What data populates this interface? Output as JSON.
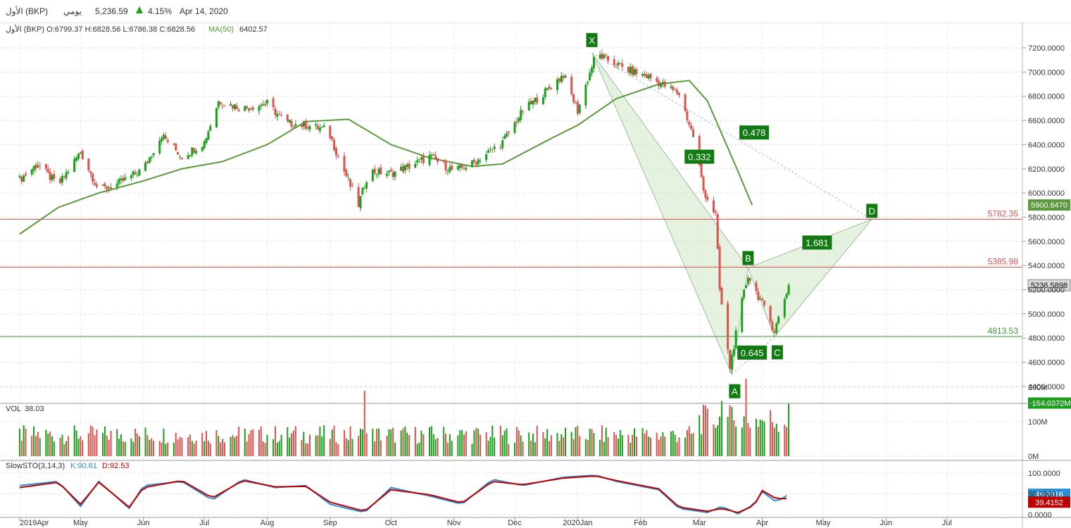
{
  "header": {
    "symbol": "الأول (BKP)",
    "period": "يومي",
    "price": "5,236.59",
    "change_icon": "triangle-up-icon",
    "change": "4.15%",
    "date": "Apr 14, 2020"
  },
  "legend": {
    "ohlc": "الأول (BKP)  O:6799.37  H:6828.56  L:6786.38  C:6828.56",
    "ma_label": "MA(50)",
    "ma_value": "6402.57",
    "vol_label": "VOL",
    "vol_value": "38.03",
    "stoch_label": "SlowSTO(3,14,3)",
    "k_label": "K:90.61",
    "d_label": "D:92.53"
  },
  "colors": {
    "up": "#1b9e1b",
    "down": "#d9534f",
    "ma": "#5a9a3c",
    "stoch_k": "#2a8fd6",
    "stoch_d": "#c00000",
    "level_red": "#e05050",
    "level_green": "#3a9a3a",
    "pattern_fill": "#cfe8c6",
    "label_bg": "#127a12"
  },
  "chart_data": [
    {
      "type": "candlestick",
      "name": "BKP daily",
      "x_labels": [
        "2019Apr",
        "May",
        "Jun",
        "Jul",
        "Aug",
        "Sep",
        "Oct",
        "Nov",
        "Dec",
        "2020Jan",
        "Feb",
        "Mar",
        "Apr",
        "May",
        "Jun",
        "Jul"
      ],
      "y_ticks": [
        "7200.0000",
        "7000.0000",
        "6800.0000",
        "6600.0000",
        "6400.0000",
        "6200.0000",
        "6000.0000",
        "5800.0000",
        "5600.0000",
        "5400.0000",
        "5200.0000",
        "5000.0000",
        "4800.0000",
        "4600.0000",
        "4400.0000"
      ],
      "ylim": [
        4300,
        7400
      ],
      "close_path": [
        [
          "2019-04-01",
          6110
        ],
        [
          "2019-04-10",
          6240
        ],
        [
          "2019-04-20",
          6060
        ],
        [
          "2019-05-01",
          6340
        ],
        [
          "2019-05-10",
          6020
        ],
        [
          "2019-05-20",
          6080
        ],
        [
          "2019-06-01",
          6200
        ],
        [
          "2019-06-10",
          6480
        ],
        [
          "2019-06-20",
          6300
        ],
        [
          "2019-07-01",
          6420
        ],
        [
          "2019-07-08",
          6760
        ],
        [
          "2019-07-20",
          6700
        ],
        [
          "2019-08-01",
          6740
        ],
        [
          "2019-08-10",
          6580
        ],
        [
          "2019-08-20",
          6560
        ],
        [
          "2019-08-31",
          6520
        ],
        [
          "2019-09-05",
          6300
        ],
        [
          "2019-09-15",
          5900
        ],
        [
          "2019-09-20",
          6180
        ],
        [
          "2019-10-01",
          6160
        ],
        [
          "2019-10-10",
          6220
        ],
        [
          "2019-10-20",
          6300
        ],
        [
          "2019-11-01",
          6180
        ],
        [
          "2019-11-10",
          6240
        ],
        [
          "2019-11-25",
          6420
        ],
        [
          "2019-12-05",
          6680
        ],
        [
          "2019-12-15",
          6820
        ],
        [
          "2019-12-25",
          6980
        ],
        [
          "2020-01-01",
          6680
        ],
        [
          "2020-01-10",
          7150
        ],
        [
          "2020-01-25",
          7020
        ],
        [
          "2020-02-05",
          6960
        ],
        [
          "2020-02-20",
          6820
        ],
        [
          "2020-02-28",
          6420
        ],
        [
          "2020-03-03",
          6020
        ],
        [
          "2020-03-09",
          5820
        ],
        [
          "2020-03-11",
          5200
        ],
        [
          "2020-03-16",
          4560
        ],
        [
          "2020-03-22",
          5100
        ],
        [
          "2020-03-25",
          5320
        ],
        [
          "2020-04-01",
          5080
        ],
        [
          "2020-04-07",
          4860
        ],
        [
          "2020-04-14",
          5236.59
        ]
      ],
      "ma50_path": [
        [
          "2019-04-01",
          5660
        ],
        [
          "2019-04-20",
          5880
        ],
        [
          "2019-05-10",
          6000
        ],
        [
          "2019-06-01",
          6100
        ],
        [
          "2019-06-20",
          6200
        ],
        [
          "2019-07-10",
          6260
        ],
        [
          "2019-08-01",
          6400
        ],
        [
          "2019-08-20",
          6590
        ],
        [
          "2019-09-10",
          6610
        ],
        [
          "2019-10-01",
          6400
        ],
        [
          "2019-10-20",
          6290
        ],
        [
          "2019-11-10",
          6220
        ],
        [
          "2019-11-25",
          6240
        ],
        [
          "2019-12-20",
          6460
        ],
        [
          "2020-01-01",
          6560
        ],
        [
          "2020-01-20",
          6780
        ],
        [
          "2020-02-10",
          6900
        ],
        [
          "2020-02-25",
          6930
        ],
        [
          "2020-03-05",
          6760
        ],
        [
          "2020-03-20",
          6180
        ],
        [
          "2020-03-27",
          5900
        ]
      ],
      "horizontal_levels": [
        {
          "value": 5782.35,
          "label": "5782.35",
          "color": "#e05050"
        },
        {
          "value": 5385.98,
          "label": "5385.98",
          "color": "#e05050"
        },
        {
          "value": 4813.53,
          "label": "4813.53",
          "color": "#3a9a3a"
        }
      ],
      "pattern_points": [
        {
          "label": "X",
          "date": "2020-01-08",
          "value": 7160
        },
        {
          "label": "A",
          "date": "2020-03-17",
          "value": 4500
        },
        {
          "label": "B",
          "date": "2020-03-25",
          "value": 5380
        },
        {
          "label": "C",
          "date": "2020-04-07",
          "value": 4810
        },
        {
          "label": "D",
          "date": "2020-05-25",
          "value": 5782.35
        }
      ],
      "pattern_ratios": [
        {
          "label": "0.332",
          "date": "2020-03-01",
          "value": 6300
        },
        {
          "label": "0.478",
          "date": "2020-03-28",
          "value": 6500
        },
        {
          "label": "1.681",
          "date": "2020-04-28",
          "value": 5590
        },
        {
          "label": "0.645",
          "date": "2020-03-27",
          "value": 4680
        }
      ],
      "price_tags": [
        {
          "value": 5900.647,
          "label": "5900.6470",
          "color": "#5a9a3c"
        },
        {
          "value": 5236.5898,
          "label": "5236.5898",
          "color": "#d8d8d8"
        }
      ]
    },
    {
      "type": "bar",
      "name": "VOL",
      "y_ticks": [
        "200M",
        "100M",
        "0M"
      ],
      "ylim": [
        0,
        250
      ],
      "last_value": "154.0372M",
      "typical_range_M": [
        35,
        90
      ],
      "spikes": [
        {
          "date": "2019-09-18",
          "value": 190
        },
        {
          "date": "2020-03-12",
          "value": 160
        },
        {
          "date": "2020-03-24",
          "value": 225
        },
        {
          "date": "2020-04-14",
          "value": 154
        }
      ]
    },
    {
      "type": "line",
      "name": "SlowSTO(3,14,3)",
      "y_ticks": [
        "100.0000",
        "50.0000",
        "0.0000"
      ],
      "ylim": [
        0,
        100
      ],
      "k_last": "49.2316",
      "d_last": "39.4152",
      "k_path": [
        [
          "2019-04-01",
          70
        ],
        [
          "2019-04-20",
          80
        ],
        [
          "2019-05-01",
          20
        ],
        [
          "2019-05-10",
          80
        ],
        [
          "2019-05-25",
          15
        ],
        [
          "2019-06-01",
          70
        ],
        [
          "2019-06-20",
          80
        ],
        [
          "2019-07-05",
          35
        ],
        [
          "2019-07-20",
          85
        ],
        [
          "2019-08-05",
          65
        ],
        [
          "2019-08-20",
          70
        ],
        [
          "2019-09-01",
          25
        ],
        [
          "2019-09-18",
          5
        ],
        [
          "2019-10-01",
          65
        ],
        [
          "2019-10-20",
          45
        ],
        [
          "2019-11-05",
          25
        ],
        [
          "2019-11-20",
          85
        ],
        [
          "2019-12-05",
          70
        ],
        [
          "2019-12-25",
          90
        ],
        [
          "2020-01-10",
          95
        ],
        [
          "2020-01-20",
          80
        ],
        [
          "2020-02-10",
          60
        ],
        [
          "2020-02-20",
          15
        ],
        [
          "2020-03-05",
          5
        ],
        [
          "2020-03-12",
          20
        ],
        [
          "2020-03-20",
          2
        ],
        [
          "2020-03-28",
          25
        ],
        [
          "2020-04-01",
          55
        ],
        [
          "2020-04-08",
          30
        ],
        [
          "2020-04-14",
          49
        ]
      ],
      "d_path": [
        [
          "2019-04-01",
          65
        ],
        [
          "2019-04-20",
          78
        ],
        [
          "2019-05-01",
          25
        ],
        [
          "2019-05-10",
          78
        ],
        [
          "2019-05-25",
          18
        ],
        [
          "2019-06-01",
          65
        ],
        [
          "2019-06-20",
          82
        ],
        [
          "2019-07-05",
          40
        ],
        [
          "2019-07-20",
          82
        ],
        [
          "2019-08-05",
          67
        ],
        [
          "2019-08-20",
          68
        ],
        [
          "2019-09-01",
          30
        ],
        [
          "2019-09-18",
          8
        ],
        [
          "2019-10-01",
          60
        ],
        [
          "2019-10-20",
          48
        ],
        [
          "2019-11-05",
          28
        ],
        [
          "2019-11-20",
          80
        ],
        [
          "2019-12-05",
          72
        ],
        [
          "2019-12-25",
          88
        ],
        [
          "2020-01-10",
          93
        ],
        [
          "2020-01-20",
          82
        ],
        [
          "2020-02-10",
          62
        ],
        [
          "2020-02-20",
          18
        ],
        [
          "2020-03-05",
          8
        ],
        [
          "2020-03-12",
          15
        ],
        [
          "2020-03-20",
          5
        ],
        [
          "2020-03-28",
          22
        ],
        [
          "2020-04-01",
          58
        ],
        [
          "2020-04-08",
          38
        ],
        [
          "2020-04-14",
          39
        ]
      ]
    }
  ]
}
